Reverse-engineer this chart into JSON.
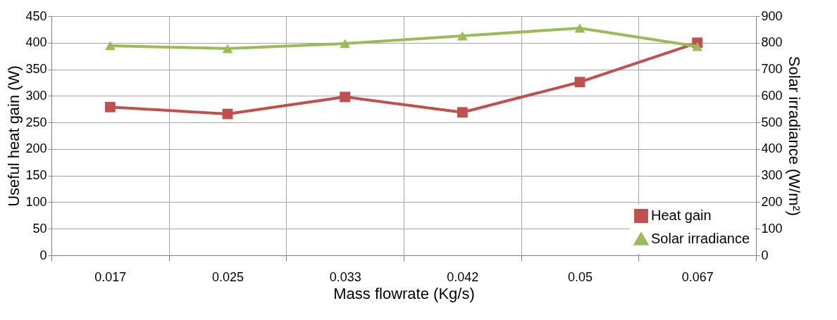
{
  "chart_data": {
    "type": "line",
    "xlabel": "Mass flowrate (Kg/s)",
    "ylabel": "Useful heat gain (W)",
    "y2label": "Solar irradiance (W/m²)",
    "categories": [
      "0.017",
      "0.025",
      "0.033",
      "0.042",
      "0.05",
      "0.067"
    ],
    "series": [
      {
        "name": "Heat gain",
        "color": "#c0504d",
        "marker": "square",
        "values": [
          279,
          266,
          298,
          269,
          326,
          400
        ]
      },
      {
        "name": "Solar irradiance",
        "color": "#9bbb59",
        "marker": "triangle",
        "axis": "y2",
        "values": [
          789,
          778,
          797,
          826,
          855,
          786
        ]
      }
    ],
    "ylim": [
      0,
      450
    ],
    "yticks": [
      0,
      50,
      100,
      150,
      200,
      250,
      300,
      350,
      400,
      450
    ],
    "y2lim": [
      0,
      900
    ],
    "y2ticks": [
      0,
      100,
      200,
      300,
      400,
      500,
      600,
      700,
      800,
      900
    ],
    "grid": true,
    "legend": "bottom right",
    "line_style": "solid"
  }
}
